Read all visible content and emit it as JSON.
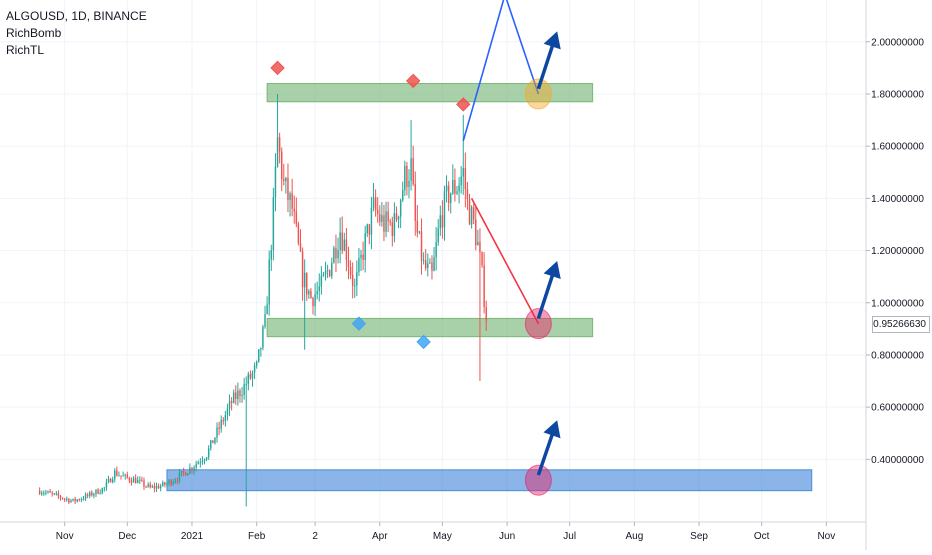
{
  "header": {
    "symbol_line": "ALGOUSD, 1D, BINANCE",
    "indicators": [
      "RichBomb",
      "RichTL"
    ]
  },
  "colors": {
    "up_candle": "#26a69a",
    "down_candle": "#ef5350",
    "green_zone": "#6fb36f",
    "blue_zone": "#3d84d8",
    "arrow": "#0d47a1",
    "blue_line": "#2962ff",
    "red_line": "#f23645"
  },
  "chart_data": {
    "type": "candlestick",
    "symbol": "ALGOUSD",
    "interval": "1D",
    "exchange": "BINANCE",
    "current_price": "0.95266630",
    "ylim": [
      0.16,
      2.16
    ],
    "y_ticks": [
      "2.00000000",
      "1.80000000",
      "1.60000000",
      "1.40000000",
      "1.20000000",
      "1.00000000",
      "0.80000000",
      "0.60000000",
      "0.40000000"
    ],
    "x_ticks": [
      "Nov",
      "Dec",
      "2021",
      "Feb",
      "2",
      "Apr",
      "May",
      "Jun",
      "Jul",
      "Aug",
      "Sep",
      "Oct",
      "Nov"
    ],
    "grid": true,
    "price_path": [
      [
        "2020-10-20",
        0.28
      ],
      [
        "2020-10-28",
        0.26
      ],
      [
        "2020-11-05",
        0.24
      ],
      [
        "2020-11-12",
        0.26
      ],
      [
        "2020-11-20",
        0.29
      ],
      [
        "2020-11-25",
        0.35
      ],
      [
        "2020-11-30",
        0.33
      ],
      [
        "2020-12-05",
        0.32
      ],
      [
        "2020-12-12",
        0.29
      ],
      [
        "2020-12-18",
        0.3
      ],
      [
        "2020-12-25",
        0.33
      ],
      [
        "2021-01-01",
        0.37
      ],
      [
        "2021-01-08",
        0.42
      ],
      [
        "2021-01-14",
        0.52
      ],
      [
        "2021-01-20",
        0.62
      ],
      [
        "2021-01-26",
        0.68
      ],
      [
        "2021-02-01",
        0.75
      ],
      [
        "2021-02-05",
        0.92
      ],
      [
        "2021-02-09",
        1.35
      ],
      [
        "2021-02-11",
        1.62
      ],
      [
        "2021-02-14",
        1.45
      ],
      [
        "2021-02-18",
        1.36
      ],
      [
        "2021-02-23",
        1.1
      ],
      [
        "2021-02-27",
        1.02
      ],
      [
        "2021-03-04",
        1.06
      ],
      [
        "2021-03-08",
        1.14
      ],
      [
        "2021-03-13",
        1.28
      ],
      [
        "2021-03-16",
        1.2
      ],
      [
        "2021-03-20",
        1.05
      ],
      [
        "2021-03-24",
        1.2
      ],
      [
        "2021-03-29",
        1.36
      ],
      [
        "2021-04-03",
        1.3
      ],
      [
        "2021-04-08",
        1.3
      ],
      [
        "2021-04-13",
        1.48
      ],
      [
        "2021-04-16",
        1.52
      ],
      [
        "2021-04-18",
        1.3
      ],
      [
        "2021-04-22",
        1.14
      ],
      [
        "2021-04-26",
        1.1
      ],
      [
        "2021-04-30",
        1.32
      ],
      [
        "2021-05-04",
        1.42
      ],
      [
        "2021-05-08",
        1.45
      ],
      [
        "2021-05-11",
        1.5
      ],
      [
        "2021-05-13",
        1.38
      ],
      [
        "2021-05-16",
        1.3
      ],
      [
        "2021-05-18",
        1.22
      ],
      [
        "2021-05-20",
        1.1
      ],
      [
        "2021-05-22",
        0.95
      ]
    ],
    "wick_extremes": {
      "highs": [
        [
          "2021-02-11",
          1.8
        ],
        [
          "2021-04-16",
          1.7
        ],
        [
          "2021-05-11",
          1.72
        ]
      ],
      "lows": [
        [
          "2021-01-27",
          0.22
        ],
        [
          "2021-02-24",
          0.82
        ],
        [
          "2021-05-19",
          0.7
        ]
      ]
    },
    "zones": [
      {
        "from": "2021-02-06",
        "to": "2021-07-12",
        "top": 1.84,
        "bottom": 1.77,
        "color": "green"
      },
      {
        "from": "2021-02-06",
        "to": "2021-07-12",
        "top": 0.94,
        "bottom": 0.87,
        "color": "green"
      },
      {
        "from": "2020-12-20",
        "to": "2021-10-25",
        "top": 0.36,
        "bottom": 0.28,
        "color": "blue"
      }
    ],
    "signals": [
      {
        "type": "sell",
        "date": "2021-02-11",
        "price": 1.9
      },
      {
        "type": "sell",
        "date": "2021-04-17",
        "price": 1.85
      },
      {
        "type": "sell",
        "date": "2021-05-11",
        "price": 1.76
      },
      {
        "type": "buy",
        "date": "2021-03-22",
        "price": 0.92
      },
      {
        "type": "buy",
        "date": "2021-04-22",
        "price": 0.85
      }
    ],
    "projections": [
      {
        "color": "blue",
        "points": [
          [
            "2021-05-11",
            1.62
          ],
          [
            "2021-05-31",
            2.18
          ],
          [
            "2021-06-16",
            1.8
          ]
        ]
      },
      {
        "color": "red",
        "points": [
          [
            "2021-05-15",
            1.4
          ],
          [
            "2021-06-16",
            0.92
          ]
        ]
      }
    ],
    "target_circles": [
      {
        "date": "2021-06-16",
        "price": 1.8,
        "color": "orange"
      },
      {
        "date": "2021-06-16",
        "price": 0.92,
        "color": "pink"
      },
      {
        "date": "2021-06-16",
        "price": 0.32,
        "color": "pink"
      }
    ],
    "arrows": [
      {
        "from": [
          "2021-06-16",
          1.82
        ],
        "to": [
          "2021-06-25",
          2.04
        ]
      },
      {
        "from": [
          "2021-06-16",
          0.94
        ],
        "to": [
          "2021-06-25",
          1.16
        ]
      },
      {
        "from": [
          "2021-06-16",
          0.34
        ],
        "to": [
          "2021-06-25",
          0.55
        ]
      }
    ]
  }
}
